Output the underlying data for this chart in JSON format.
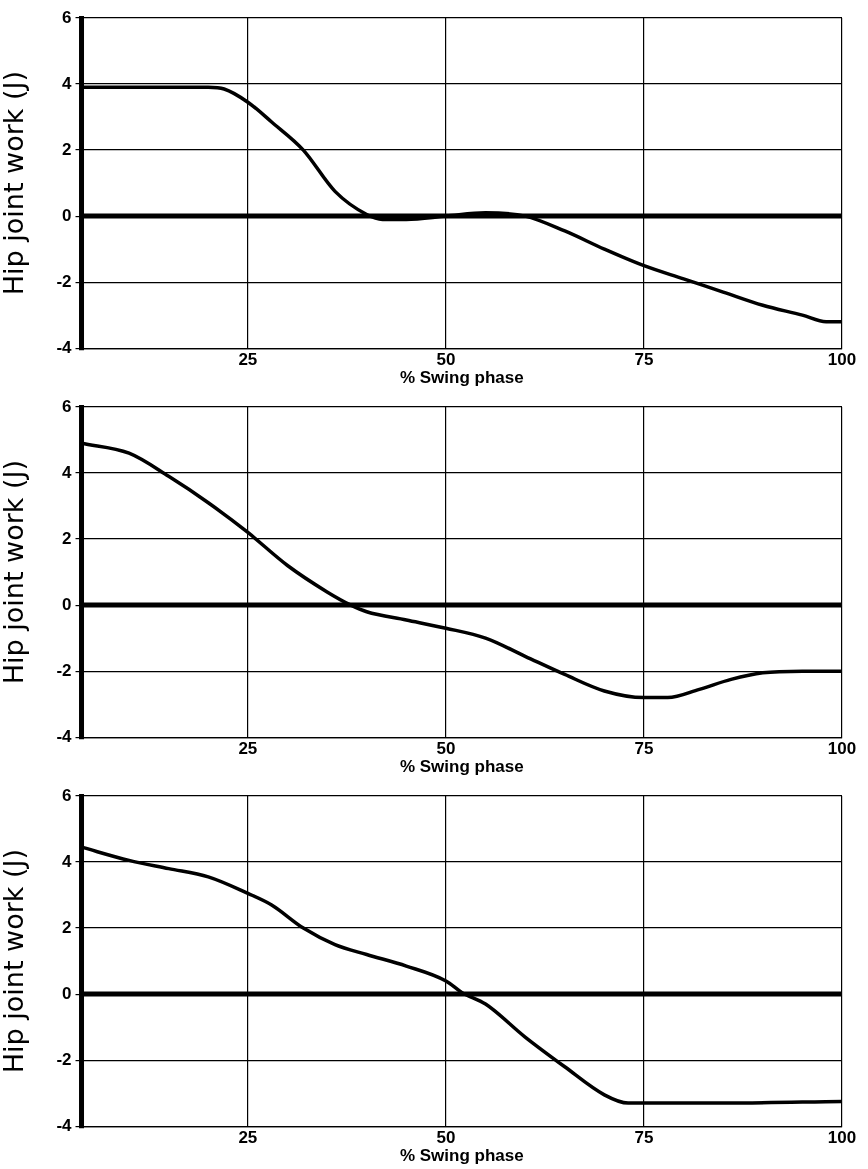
{
  "chart_data": [
    {
      "type": "line",
      "xlabel": "% Swing phase",
      "ylabel": "Hip joint work (J)",
      "xlim": [
        4,
        100
      ],
      "xticks": [
        25,
        50,
        75,
        100
      ],
      "ylim": [
        -4,
        6
      ],
      "yticks": [
        -4,
        -2,
        0,
        2,
        4,
        6
      ],
      "grid": true,
      "ref_lines": [
        {
          "axis": "y",
          "value": 0,
          "color": "#000000"
        }
      ],
      "series": [
        {
          "color": "#000000",
          "x": [
            4,
            10,
            16,
            20,
            22,
            25,
            28,
            32,
            36,
            40,
            42,
            45,
            50,
            55,
            60,
            65,
            70,
            75,
            80,
            85,
            90,
            95,
            98,
            100
          ],
          "values": [
            3.9,
            3.9,
            3.9,
            3.9,
            3.85,
            3.45,
            2.85,
            2.0,
            0.75,
            0.05,
            -0.1,
            -0.1,
            0.0,
            0.1,
            0.0,
            -0.45,
            -1.0,
            -1.5,
            -1.9,
            -2.3,
            -2.7,
            -3.0,
            -3.2,
            -3.2
          ]
        }
      ]
    },
    {
      "type": "line",
      "xlabel": "% Swing phase",
      "ylabel": "Hip joint work (J)",
      "xlim": [
        4,
        100
      ],
      "xticks": [
        25,
        50,
        75,
        100
      ],
      "ylim": [
        -4,
        6
      ],
      "yticks": [
        -4,
        -2,
        0,
        2,
        4,
        6
      ],
      "grid": true,
      "ref_lines": [
        {
          "axis": "y",
          "value": 0,
          "color": "#000000"
        }
      ],
      "series": [
        {
          "color": "#000000",
          "x": [
            4,
            10,
            15,
            20,
            25,
            30,
            35,
            38,
            40,
            45,
            50,
            55,
            60,
            65,
            70,
            75,
            78,
            82,
            86,
            90,
            95,
            100
          ],
          "values": [
            4.9,
            4.6,
            3.9,
            3.1,
            2.2,
            1.2,
            0.4,
            0.0,
            -0.2,
            -0.45,
            -0.7,
            -1.0,
            -1.55,
            -2.1,
            -2.6,
            -2.8,
            -2.8,
            -2.55,
            -2.25,
            -2.05,
            -2.0,
            -2.0
          ]
        }
      ]
    },
    {
      "type": "line",
      "xlabel": "% Swing phase",
      "ylabel": "Hip joint work (J)",
      "xlim": [
        4,
        100
      ],
      "xticks": [
        25,
        50,
        75,
        100
      ],
      "ylim": [
        -4,
        6
      ],
      "yticks": [
        -4,
        -2,
        0,
        2,
        4,
        6
      ],
      "grid": true,
      "ref_lines": [
        {
          "axis": "y",
          "value": 0,
          "color": "#000000"
        }
      ],
      "series": [
        {
          "color": "#000000",
          "x": [
            4,
            10,
            15,
            20,
            25,
            28,
            32,
            36,
            40,
            45,
            50,
            52,
            55,
            60,
            65,
            70,
            73,
            75,
            85,
            100
          ],
          "values": [
            4.45,
            4.05,
            3.8,
            3.55,
            3.05,
            2.7,
            2.0,
            1.5,
            1.2,
            0.85,
            0.4,
            0.05,
            -0.3,
            -1.3,
            -2.2,
            -3.05,
            -3.3,
            -3.3,
            -3.3,
            -3.25
          ]
        }
      ]
    }
  ]
}
